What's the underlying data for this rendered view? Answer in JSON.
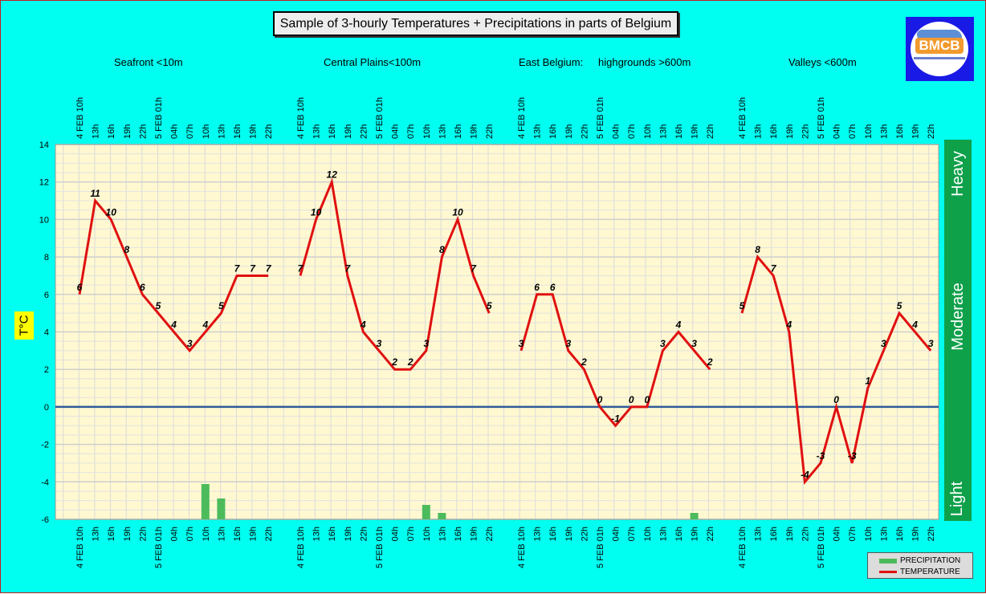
{
  "title": "Sample of 3-hourly Temperatures + Precipitations in parts of Belgium",
  "region_labels": [
    "Seafront <10m",
    "Central Plains<100m",
    "East Belgium:",
    "highgrounds >600m",
    "Valleys <600m"
  ],
  "logo_text": "BMCB",
  "y_axis_label": "T°C",
  "intensity_labels": [
    "Heavy",
    "Moderate",
    "Light"
  ],
  "legend": {
    "precipitation": "PRECIPITATION",
    "temperature": "TEMPERATURE"
  },
  "colors": {
    "background": "#00FFF0",
    "plot_bg": "#FFF8D0",
    "temperature": "#E01010",
    "precipitation": "#4CBB5C",
    "zero_line": "#2E5C9A",
    "intensity_bar": "#0FA04A"
  },
  "chart_data": {
    "type": "line",
    "ylim": [
      -6,
      14
    ],
    "y_ticks": [
      "-6",
      "-4",
      "-2",
      "0",
      "2",
      "4",
      "6",
      "8",
      "10",
      "12",
      "14"
    ],
    "grid": true,
    "x_tick_labels": {
      "Seafront": [
        "4 FEB 10h",
        "13h",
        "16h",
        "19h",
        "22h",
        "5 FEB 01h",
        "04h",
        "07h",
        "10h",
        "13h",
        "16h",
        "19h",
        "22h"
      ],
      "Central Plains": [
        "4 FEB 10h",
        "13h",
        "16h",
        "19h",
        "22h",
        "5 FEB 01h",
        "04h",
        "07h",
        "10h",
        "13h",
        "16h",
        "19h",
        "22h"
      ],
      "East Belgium highgrounds": [
        "4 FEB 10h",
        "13h",
        "16h",
        "19h",
        "22h",
        "5 FEB 01h",
        "04h",
        "07h",
        "10h",
        "13h",
        "16h",
        "19h",
        "22h"
      ],
      "Valleys": [
        "4 FEB 10h",
        "13h",
        "16h",
        "19h",
        "22h",
        "5 FEB 01h",
        "04h",
        "07h",
        "10h",
        "13h",
        "16h",
        "19h",
        "22h"
      ]
    },
    "series": [
      {
        "name": "TEMPERATURE",
        "region": "Seafront",
        "values": [
          6,
          11,
          10,
          8,
          6,
          5,
          4,
          3,
          4,
          5,
          7,
          7,
          7
        ]
      },
      {
        "name": "TEMPERATURE",
        "region": "Central Plains",
        "values": [
          7,
          10,
          12,
          7,
          4,
          3,
          2,
          2,
          3,
          8,
          10,
          7,
          5
        ]
      },
      {
        "name": "TEMPERATURE",
        "region": "East Belgium highgrounds",
        "values": [
          3,
          6,
          6,
          3,
          2,
          0,
          -1,
          0,
          0,
          3,
          4,
          3,
          2
        ]
      },
      {
        "name": "TEMPERATURE",
        "region": "Valleys",
        "values": [
          5,
          8,
          7,
          4,
          -4,
          -3,
          0,
          -3,
          1,
          3,
          5,
          4,
          3
        ]
      }
    ],
    "precipitation": [
      {
        "region": "Seafront",
        "values": [
          0,
          0,
          0,
          0,
          0,
          0,
          0,
          0,
          2.2,
          1.3,
          0,
          0,
          0
        ]
      },
      {
        "region": "Central Plains",
        "values": [
          0,
          0,
          0,
          0,
          0,
          0,
          0,
          0,
          0.9,
          0.4,
          0,
          0,
          0
        ]
      },
      {
        "region": "East Belgium highgrounds",
        "values": [
          0,
          0,
          0,
          0,
          0,
          0,
          0,
          0,
          0,
          0,
          0,
          0.4,
          0
        ]
      },
      {
        "region": "Valleys",
        "values": [
          0,
          0,
          0,
          0,
          0,
          0,
          0,
          0,
          0,
          0,
          0,
          0,
          0
        ]
      }
    ]
  }
}
